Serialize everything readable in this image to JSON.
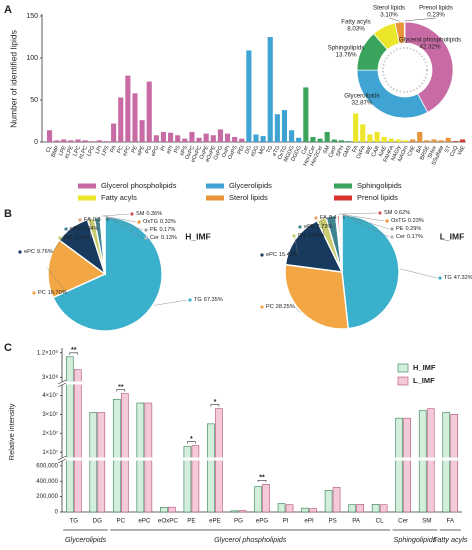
{
  "chart_data": [
    {
      "type": "bar",
      "panel_label": "A",
      "ylabel": "Number of identified lipids",
      "ylim": [
        0,
        150
      ],
      "yticks": [
        0,
        50,
        100,
        150
      ],
      "series": [
        {
          "name": "Glycerol phospholipids",
          "color": "#c86aa4",
          "categories": [
            "CL",
            "BMP",
            "LPE",
            "eLPE",
            "LPC",
            "eLPC",
            "LPG",
            "LPI",
            "LPS",
            "PA",
            "PC",
            "ePC",
            "PE",
            "ePE",
            "PG",
            "ePG",
            "PI",
            "ePI",
            "PS",
            "ePS",
            "OxPC",
            "eOxPC",
            "OxPE",
            "eOxPE",
            "OxPG",
            "OxPI",
            "OxPS",
            "PEt"
          ],
          "values": [
            14,
            2,
            3,
            2,
            3,
            2,
            1,
            2,
            1,
            22,
            53,
            79,
            58,
            26,
            72,
            8,
            12,
            11,
            8,
            4,
            12,
            5,
            10,
            8,
            15,
            10,
            6,
            4
          ]
        },
        {
          "name": "Glycerolipids",
          "color": "#3fa3d3",
          "categories": [
            "DG",
            "eDG",
            "MG",
            "TG",
            "eTG",
            "OxTG",
            "MGDG",
            "DGDG"
          ],
          "values": [
            109,
            9,
            7,
            125,
            33,
            38,
            14,
            5
          ]
        },
        {
          "name": "Sphingolipids",
          "color": "#3aa35c",
          "categories": [
            "Cer",
            "Hex1Cer",
            "Hex2Cer",
            "SM",
            "CerP",
            "SPH",
            "GM3"
          ],
          "values": [
            65,
            6,
            4,
            12,
            3,
            2,
            1
          ]
        },
        {
          "name": "Fatty acyls",
          "color": "#ece62a",
          "categories": [
            "FA",
            "OxFA",
            "WE",
            "CAR",
            "NAE",
            "FAHFA",
            "NAGly",
            "NAOrn"
          ],
          "values": [
            34,
            21,
            9,
            12,
            6,
            4,
            3,
            2
          ]
        },
        {
          "name": "Sterol lipids",
          "color": "#e8943a",
          "categories": [
            "ChE",
            "BA",
            "BRSE",
            "SHex",
            "SSulfate",
            "ST"
          ],
          "values": [
            3,
            12,
            2,
            3,
            2,
            5
          ]
        },
        {
          "name": "Prenol lipids",
          "color": "#d9322e",
          "categories": [
            "CoQ",
            "VitE"
          ],
          "values": [
            1,
            3
          ]
        }
      ]
    },
    {
      "type": "donut",
      "categories": [
        "Glycerol phospholipids",
        "Glycerolipids",
        "Sphingolipids",
        "Fatty acyls",
        "Sterol lipids",
        "Prenol lipids"
      ],
      "values": [
        42.32,
        32.87,
        13.76,
        8.03,
        3.1,
        0.23
      ],
      "value_labels": [
        "42.32%",
        "32.87%",
        "13.76%",
        "8.03%",
        "3.10%",
        "0.23%"
      ],
      "colors": [
        "#c86aa4",
        "#3fa3d3",
        "#3aa35c",
        "#ece62a",
        "#e8943a",
        "#d9322e"
      ]
    },
    {
      "type": "pie",
      "panel_label": "B",
      "title": "H_IMF",
      "categories": [
        "TG",
        "PC",
        "ePC",
        "DG",
        "ePE",
        "FA",
        "SM",
        "OxTG",
        "PE",
        "Cer"
      ],
      "values": [
        67.35,
        16.7,
        9.76,
        1.91,
        1.64,
        0.38,
        0.36,
        0.32,
        0.17,
        0.13
      ],
      "value_labels": [
        "67.35%",
        "16.70%",
        "9.76%",
        "1.91%",
        "1.64%",
        "0.38%",
        "0.36%",
        "0.32%",
        "0.17%",
        "0.13%"
      ],
      "colors": [
        "#3ab0cc",
        "#f2a744",
        "#173a5e",
        "#c8cc6e",
        "#3f8290",
        "#e6a070",
        "#d05555",
        "#ef8f3c",
        "#9aa0a6",
        "#b8b8b8"
      ]
    },
    {
      "type": "pie",
      "title": "L_IMF",
      "categories": [
        "TG",
        "PC",
        "ePC",
        "DG",
        "ePE",
        "FA",
        "SM",
        "OxTG",
        "PE",
        "Cer"
      ],
      "values": [
        47.32,
        28.25,
        15.42,
        2.6,
        2.73,
        0.43,
        0.62,
        0.23,
        0.29,
        0.17
      ],
      "value_labels": [
        "47.32%",
        "28.25%",
        "15.42%",
        "2.60%",
        "2.73%",
        "0.43%",
        "0.62%",
        "0.23%",
        "0.29%",
        "0.17%"
      ],
      "colors": [
        "#3ab0cc",
        "#f2a744",
        "#173a5e",
        "#c8cc6e",
        "#3f8290",
        "#e6a070",
        "#d05555",
        "#ef8f3c",
        "#9aa0a6",
        "#b8b8b8"
      ]
    },
    {
      "type": "grouped_bar",
      "panel_label": "C",
      "ylabel": "Relative intensity",
      "categories": [
        "TG",
        "DG",
        "PC",
        "ePC",
        "eOxPC",
        "PE",
        "ePE",
        "PG",
        "ePG",
        "PI",
        "ePI",
        "PS",
        "PA",
        "CL",
        "Cer",
        "SM",
        "FA"
      ],
      "series": [
        {
          "name": "H_IMF",
          "color": "#d3eedb",
          "edge": "#2f7d50",
          "values": [
            1050000000,
            31000000,
            38000000,
            36000000,
            60000,
            13000000,
            25000000,
            15000,
            330000,
            110000,
            50000,
            280000,
            95000,
            100000,
            28000000,
            32000000,
            31000000
          ]
        },
        {
          "name": "L_IMF",
          "color": "#f4c9d8",
          "edge": "#b0507a",
          "values": [
            580000000,
            31000000,
            41000000,
            36000000,
            62000,
            13500000,
            33000000,
            18000,
            360000,
            95000,
            45000,
            320000,
            100000,
            95000,
            28000000,
            33000000,
            30000000
          ]
        }
      ],
      "ylim_segments": [
        [
          0,
          650000
        ],
        [
          8000000,
          45000000
        ],
        [
          200000000,
          1300000000
        ]
      ],
      "yticks_segments": [
        [
          0,
          {
            "value": 200000,
            "label": "200,000"
          },
          {
            "value": 400000,
            "label": "400,000"
          },
          {
            "value": 600000,
            "label": "600,000"
          }
        ],
        [
          {
            "value": 10000000,
            "label": "1×10⁷"
          },
          {
            "value": 20000000,
            "label": "2×10⁷"
          },
          {
            "value": 30000000,
            "label": "3×10⁷"
          },
          {
            "value": 40000000,
            "label": "4×10⁷"
          }
        ],
        [
          {
            "value": 300000000,
            "label": "3×10⁸"
          },
          {
            "value": 1200000000,
            "label": "1.2×10⁹"
          }
        ]
      ],
      "significance": [
        "**",
        null,
        "**",
        null,
        null,
        "*",
        "*",
        null,
        "**",
        null,
        null,
        null,
        null,
        null,
        null,
        null,
        null
      ],
      "groups": [
        {
          "name": "Glycerolipids",
          "span": [
            0,
            1
          ]
        },
        {
          "name": "Glycerol phospholipids",
          "span": [
            2,
            13
          ]
        },
        {
          "name": "Sphingolipids",
          "span": [
            14,
            15
          ]
        },
        {
          "name": "Fatty acyls",
          "span": [
            16,
            16
          ]
        }
      ]
    }
  ]
}
